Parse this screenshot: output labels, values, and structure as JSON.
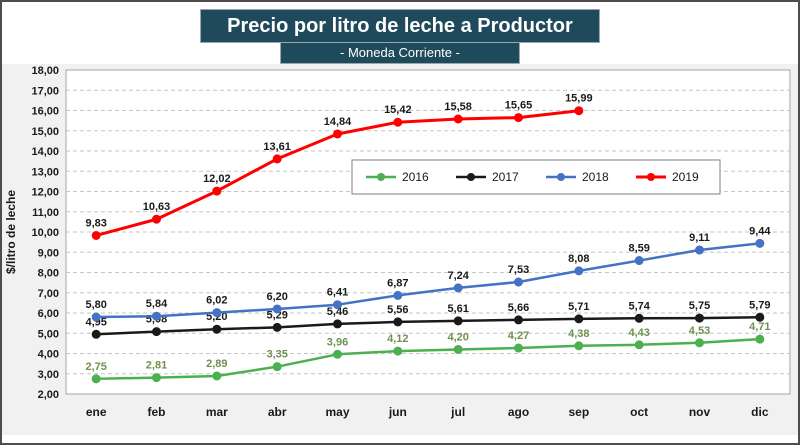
{
  "colors": {
    "header_bg": "#1f4a5c",
    "frame_border": "#4d4d4d",
    "chart_bg": "#f1f1f1",
    "plot_bg": "#ffffff",
    "plot_border": "#a6a6a6",
    "grid": "#c6c6c6",
    "axis_text": "#1a1a1a",
    "legend_border": "#7f7f7f"
  },
  "chart_data": {
    "type": "line",
    "title": "Precio por litro de leche a Productor",
    "subtitle": "- Moneda Corriente -",
    "xlabel": "",
    "ylabel": "$/litro de leche",
    "categories": [
      "ene",
      "feb",
      "mar",
      "abr",
      "may",
      "jun",
      "jul",
      "ago",
      "sep",
      "oct",
      "nov",
      "dic"
    ],
    "y_axis": {
      "min": 2,
      "max": 18,
      "step": 1,
      "tick_format": "0,00"
    },
    "grid": "dashed-horizontal",
    "legend_position": "inside-top-center",
    "data_labels": true,
    "decimal_separator": ",",
    "series": [
      {
        "name": "2016",
        "color": "#4caf50",
        "label_color": "#6e9150",
        "line_width": 2.5,
        "values": [
          2.75,
          2.81,
          2.89,
          3.35,
          3.96,
          4.12,
          4.2,
          4.27,
          4.38,
          4.43,
          4.53,
          4.71
        ]
      },
      {
        "name": "2017",
        "color": "#1a1a1a",
        "label_color": "#1a1a1a",
        "line_width": 2.5,
        "values": [
          4.95,
          5.08,
          5.2,
          5.29,
          5.46,
          5.56,
          5.61,
          5.66,
          5.71,
          5.74,
          5.75,
          5.79
        ]
      },
      {
        "name": "2018",
        "color": "#4472c4",
        "label_color": "#1a1a1a",
        "line_width": 2.5,
        "values": [
          5.8,
          5.84,
          6.02,
          6.2,
          6.41,
          6.87,
          7.24,
          7.53,
          8.08,
          8.59,
          9.11,
          9.44
        ]
      },
      {
        "name": "2019",
        "color": "#ff0000",
        "label_color": "#1a1a1a",
        "line_width": 3,
        "values": [
          9.83,
          10.63,
          12.02,
          13.61,
          14.84,
          15.42,
          15.58,
          15.65,
          15.99,
          null,
          null,
          null
        ]
      }
    ]
  }
}
